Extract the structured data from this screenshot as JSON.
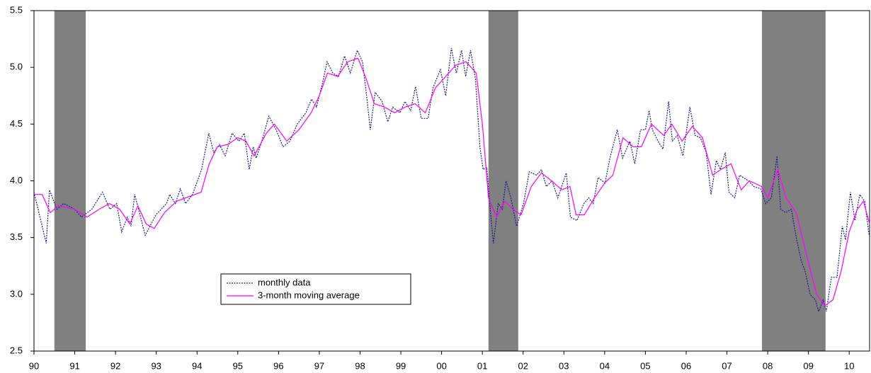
{
  "chart_data": {
    "type": "line",
    "xlim": [
      1990,
      2010.5
    ],
    "ylim": [
      2.5,
      5.5
    ],
    "xticks": [
      {
        "value": 1990,
        "label": "90"
      },
      {
        "value": 1991,
        "label": "91"
      },
      {
        "value": 1992,
        "label": "92"
      },
      {
        "value": 1993,
        "label": "93"
      },
      {
        "value": 1994,
        "label": "94"
      },
      {
        "value": 1995,
        "label": "95"
      },
      {
        "value": 1996,
        "label": "96"
      },
      {
        "value": 1997,
        "label": "97"
      },
      {
        "value": 1998,
        "label": "98"
      },
      {
        "value": 1999,
        "label": "99"
      },
      {
        "value": 2000,
        "label": "00"
      },
      {
        "value": 2001,
        "label": "01"
      },
      {
        "value": 2002,
        "label": "02"
      },
      {
        "value": 2003,
        "label": "03"
      },
      {
        "value": 2004,
        "label": "04"
      },
      {
        "value": 2005,
        "label": "05"
      },
      {
        "value": 2006,
        "label": "06"
      },
      {
        "value": 2007,
        "label": "07"
      },
      {
        "value": 2008,
        "label": "08"
      },
      {
        "value": 2009,
        "label": "09"
      },
      {
        "value": 2010,
        "label": "10"
      }
    ],
    "yticks": [
      2.5,
      {
        "value": 3,
        "label": "3.0"
      },
      3.5,
      {
        "value": 4,
        "label": "4.0"
      },
      4.5,
      {
        "value": 5,
        "label": "5.0"
      },
      5.5
    ],
    "shaded_periods": [
      [
        1990.5,
        1991.27
      ],
      [
        2001.15,
        2001.88
      ],
      [
        2007.86,
        2009.42
      ]
    ],
    "shade_color": "#808080",
    "series": [
      {
        "name": "monthly data",
        "color": "#1a1a8c",
        "dashed": true,
        "x": [
          1990.0,
          1990.3,
          1990.38,
          1990.56,
          1990.73,
          1991.0,
          1991.16,
          1991.42,
          1991.68,
          1991.86,
          1992.03,
          1992.15,
          1992.29,
          1992.38,
          1992.47,
          1992.6,
          1992.73,
          1992.99,
          1993.25,
          1993.33,
          1993.47,
          1993.59,
          1993.72,
          1993.89,
          1994.11,
          1994.29,
          1994.41,
          1994.55,
          1994.69,
          1994.86,
          1995.03,
          1995.16,
          1995.28,
          1995.38,
          1995.45,
          1995.59,
          1995.76,
          1995.94,
          1996.11,
          1996.28,
          1996.46,
          1996.67,
          1996.81,
          1996.93,
          1997.07,
          1997.19,
          1997.33,
          1997.47,
          1997.62,
          1997.76,
          1997.93,
          1998.06,
          1998.16,
          1998.25,
          1998.37,
          1998.54,
          1998.68,
          1998.8,
          1998.98,
          1999.1,
          1999.24,
          1999.36,
          1999.5,
          1999.67,
          1999.79,
          1999.97,
          2000.1,
          2000.24,
          2000.36,
          2000.49,
          2000.59,
          2000.71,
          2000.83,
          2000.94,
          2001.02,
          2001.11,
          2001.18,
          2001.27,
          2001.39,
          2001.49,
          2001.58,
          2001.7,
          2001.84,
          2002.01,
          2002.15,
          2002.33,
          2002.45,
          2002.57,
          2002.71,
          2002.85,
          2003.06,
          2003.16,
          2003.32,
          2003.49,
          2003.61,
          2003.72,
          2003.84,
          2004.01,
          2004.13,
          2004.31,
          2004.44,
          2004.62,
          2004.74,
          2004.88,
          2005.0,
          2005.09,
          2005.17,
          2005.31,
          2005.43,
          2005.57,
          2005.66,
          2005.78,
          2005.92,
          2006.09,
          2006.22,
          2006.35,
          2006.49,
          2006.61,
          2006.74,
          2006.84,
          2006.96,
          2007.05,
          2007.19,
          2007.31,
          2007.53,
          2007.66,
          2007.83,
          2007.95,
          2008.09,
          2008.23,
          2008.32,
          2008.44,
          2008.58,
          2008.7,
          2008.82,
          2008.92,
          2009.04,
          2009.17,
          2009.25,
          2009.36,
          2009.44,
          2009.56,
          2009.7,
          2009.83,
          2009.91,
          2010.03,
          2010.14,
          2010.26,
          2010.38,
          2010.49
        ],
        "values": [
          3.9,
          3.45,
          3.92,
          3.75,
          3.8,
          3.75,
          3.68,
          3.75,
          3.9,
          3.75,
          3.8,
          3.55,
          3.68,
          3.6,
          3.88,
          3.7,
          3.52,
          3.7,
          3.8,
          3.88,
          3.8,
          3.93,
          3.8,
          3.88,
          4.1,
          4.42,
          4.25,
          4.32,
          4.22,
          4.42,
          4.35,
          4.42,
          4.1,
          4.3,
          4.2,
          4.35,
          4.57,
          4.45,
          4.3,
          4.35,
          4.5,
          4.6,
          4.72,
          4.65,
          4.85,
          5.05,
          4.95,
          4.92,
          5.1,
          4.95,
          5.15,
          5.05,
          4.75,
          4.45,
          4.78,
          4.7,
          4.52,
          4.65,
          4.6,
          4.7,
          4.62,
          4.83,
          4.55,
          4.55,
          4.82,
          4.98,
          4.75,
          5.17,
          4.95,
          5.15,
          4.92,
          5.15,
          4.9,
          4.3,
          4.1,
          4.12,
          3.8,
          3.45,
          3.8,
          3.75,
          4.0,
          3.85,
          3.6,
          3.8,
          4.08,
          4.05,
          4.1,
          3.95,
          4.0,
          3.85,
          4.07,
          3.68,
          3.65,
          3.8,
          3.85,
          3.8,
          4.03,
          3.98,
          4.2,
          4.45,
          4.2,
          4.35,
          4.15,
          4.45,
          4.45,
          4.62,
          4.45,
          4.35,
          4.28,
          4.7,
          4.35,
          4.4,
          4.22,
          4.65,
          4.4,
          4.38,
          4.25,
          3.88,
          4.18,
          4.1,
          4.25,
          3.9,
          3.85,
          4.05,
          4.0,
          3.95,
          3.93,
          3.8,
          3.85,
          4.22,
          3.75,
          3.72,
          3.75,
          3.5,
          3.3,
          3.2,
          3.0,
          2.95,
          2.85,
          2.95,
          2.85,
          3.15,
          3.15,
          3.6,
          3.48,
          3.9,
          3.65,
          3.88,
          3.82,
          3.52
        ]
      },
      {
        "name": "3-month moving average",
        "color": "#ff00ff",
        "dashed": false,
        "x": [
          1990.0,
          1990.2,
          1990.4,
          1990.6,
          1991.0,
          1991.3,
          1991.6,
          1991.85,
          1992.1,
          1992.35,
          1992.55,
          1992.75,
          1992.95,
          1993.2,
          1993.5,
          1993.8,
          1994.1,
          1994.3,
          1994.5,
          1994.75,
          1995.0,
          1995.2,
          1995.4,
          1995.7,
          1995.9,
          1996.2,
          1996.5,
          1996.8,
          1997.0,
          1997.2,
          1997.45,
          1997.7,
          1997.95,
          1998.15,
          1998.35,
          1998.6,
          1998.85,
          1999.1,
          1999.35,
          1999.6,
          1999.85,
          2000.1,
          2000.35,
          2000.6,
          2000.85,
          2001.0,
          2001.15,
          2001.35,
          2001.55,
          2001.75,
          2001.95,
          2002.2,
          2002.45,
          2002.7,
          2002.95,
          2003.15,
          2003.3,
          2003.5,
          2003.75,
          2004.0,
          2004.2,
          2004.45,
          2004.7,
          2004.9,
          2005.15,
          2005.45,
          2005.65,
          2005.9,
          2006.15,
          2006.4,
          2006.65,
          2006.85,
          2007.1,
          2007.35,
          2007.55,
          2007.85,
          2008.0,
          2008.25,
          2008.45,
          2008.7,
          2008.95,
          2009.2,
          2009.4,
          2009.6,
          2009.8,
          2010.0,
          2010.2,
          2010.35,
          2010.5
        ],
        "values": [
          3.88,
          3.88,
          3.72,
          3.78,
          3.75,
          3.68,
          3.75,
          3.8,
          3.75,
          3.62,
          3.78,
          3.62,
          3.58,
          3.72,
          3.82,
          3.86,
          3.9,
          4.15,
          4.3,
          4.32,
          4.38,
          4.35,
          4.22,
          4.42,
          4.5,
          4.35,
          4.45,
          4.6,
          4.75,
          4.95,
          4.92,
          5.05,
          5.08,
          4.9,
          4.68,
          4.65,
          4.6,
          4.65,
          4.68,
          4.6,
          4.82,
          4.92,
          5.02,
          5.05,
          4.95,
          4.5,
          3.85,
          3.68,
          3.82,
          3.75,
          3.7,
          3.95,
          4.07,
          4.0,
          3.92,
          3.95,
          3.7,
          3.7,
          3.85,
          3.98,
          4.05,
          4.38,
          4.3,
          4.3,
          4.5,
          4.4,
          4.5,
          4.35,
          4.48,
          4.38,
          4.05,
          4.1,
          4.15,
          3.92,
          4.0,
          3.95,
          3.85,
          4.1,
          3.85,
          3.72,
          3.35,
          3.0,
          2.9,
          2.95,
          3.2,
          3.55,
          3.75,
          3.82,
          3.62
        ]
      }
    ]
  }
}
